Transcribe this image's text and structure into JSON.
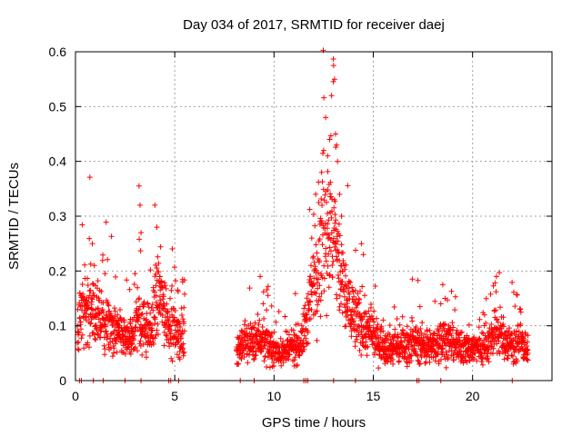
{
  "chart_data": {
    "type": "scatter",
    "title": "Day 034 of 2017, SRMTID for receiver daej",
    "xlabel": "GPS time / hours",
    "ylabel": "SRMTID / TECUs",
    "xlim": [
      0,
      24
    ],
    "ylim": [
      0,
      0.6
    ],
    "xticks": [
      0,
      5,
      10,
      15,
      20
    ],
    "yticks": [
      0,
      0.1,
      0.2,
      0.3,
      0.4,
      0.5,
      0.6
    ],
    "xtick_labels": [
      "0",
      "5",
      "10",
      "15",
      "20"
    ],
    "ytick_labels": [
      "0",
      "0.1",
      "0.2",
      "0.3",
      "0.4",
      "0.5",
      "0.6"
    ],
    "grid": true,
    "marker": "+",
    "color": "#ff0000",
    "series": [
      {
        "name": "SRMTID",
        "profile": [
          [
            0.1,
            0.09
          ],
          [
            0.3,
            0.12
          ],
          [
            0.6,
            0.14
          ],
          [
            0.9,
            0.13
          ],
          [
            1.2,
            0.11
          ],
          [
            1.6,
            0.1
          ],
          [
            2.0,
            0.09
          ],
          [
            2.4,
            0.08
          ],
          [
            2.8,
            0.07
          ],
          [
            3.1,
            0.12
          ],
          [
            3.4,
            0.1
          ],
          [
            3.8,
            0.09
          ],
          [
            4.2,
            0.16
          ],
          [
            4.6,
            0.12
          ],
          [
            5.0,
            0.09
          ],
          [
            5.4,
            0.08
          ],
          [
            8.2,
            0.06
          ],
          [
            8.7,
            0.07
          ],
          [
            9.3,
            0.08
          ],
          [
            9.8,
            0.06
          ],
          [
            10.4,
            0.05
          ],
          [
            10.9,
            0.06
          ],
          [
            11.4,
            0.07
          ],
          [
            11.8,
            0.14
          ],
          [
            12.2,
            0.22
          ],
          [
            12.6,
            0.3
          ],
          [
            13.0,
            0.26
          ],
          [
            13.3,
            0.2
          ],
          [
            13.7,
            0.14
          ],
          [
            14.2,
            0.11
          ],
          [
            14.7,
            0.09
          ],
          [
            15.3,
            0.07
          ],
          [
            16.0,
            0.06
          ],
          [
            17.0,
            0.07
          ],
          [
            18.0,
            0.06
          ],
          [
            18.6,
            0.08
          ],
          [
            19.2,
            0.06
          ],
          [
            20.0,
            0.06
          ],
          [
            20.6,
            0.06
          ],
          [
            21.2,
            0.09
          ],
          [
            21.7,
            0.07
          ],
          [
            22.2,
            0.07
          ],
          [
            22.8,
            0.06
          ]
        ],
        "gaps": [
          [
            5.5,
            8.1
          ]
        ],
        "outliers": [
          [
            3.2,
            0.355
          ],
          [
            3.25,
            0.32
          ],
          [
            4.0,
            0.32
          ],
          [
            4.1,
            0.28
          ],
          [
            3.3,
            0.27
          ],
          [
            0.85,
            0.25
          ],
          [
            0.95,
            0.21
          ],
          [
            4.25,
            0.19
          ],
          [
            9.3,
            0.19
          ],
          [
            4.3,
            0.18
          ],
          [
            5.4,
            0.18
          ],
          [
            12.5,
            0.42
          ],
          [
            12.6,
            0.48
          ],
          [
            12.4,
            0.38
          ],
          [
            12.9,
            0.52
          ],
          [
            13.0,
            0.575
          ],
          [
            13.05,
            0.55
          ],
          [
            13.1,
            0.45
          ],
          [
            13.15,
            0.43
          ],
          [
            13.2,
            0.4
          ],
          [
            13.3,
            0.34
          ],
          [
            12.8,
            0.44
          ],
          [
            12.7,
            0.41
          ],
          [
            13.4,
            0.3
          ],
          [
            12.1,
            0.34
          ],
          [
            11.9,
            0.26
          ],
          [
            14.4,
            0.25
          ],
          [
            14.5,
            0.23
          ],
          [
            21.2,
            0.19
          ],
          [
            18.5,
            0.175
          ],
          [
            18.4,
            0.14
          ],
          [
            20.6,
            0.12
          ]
        ],
        "zero_points": [
          0.2,
          0.3,
          0.9,
          1.4,
          2.5,
          3.3,
          4.7,
          4.8,
          5.2,
          8.3,
          9.0,
          11.5,
          11.6,
          11.7,
          13.0,
          14.1,
          17.2,
          17.3,
          18.4,
          22.0
        ]
      }
    ]
  }
}
